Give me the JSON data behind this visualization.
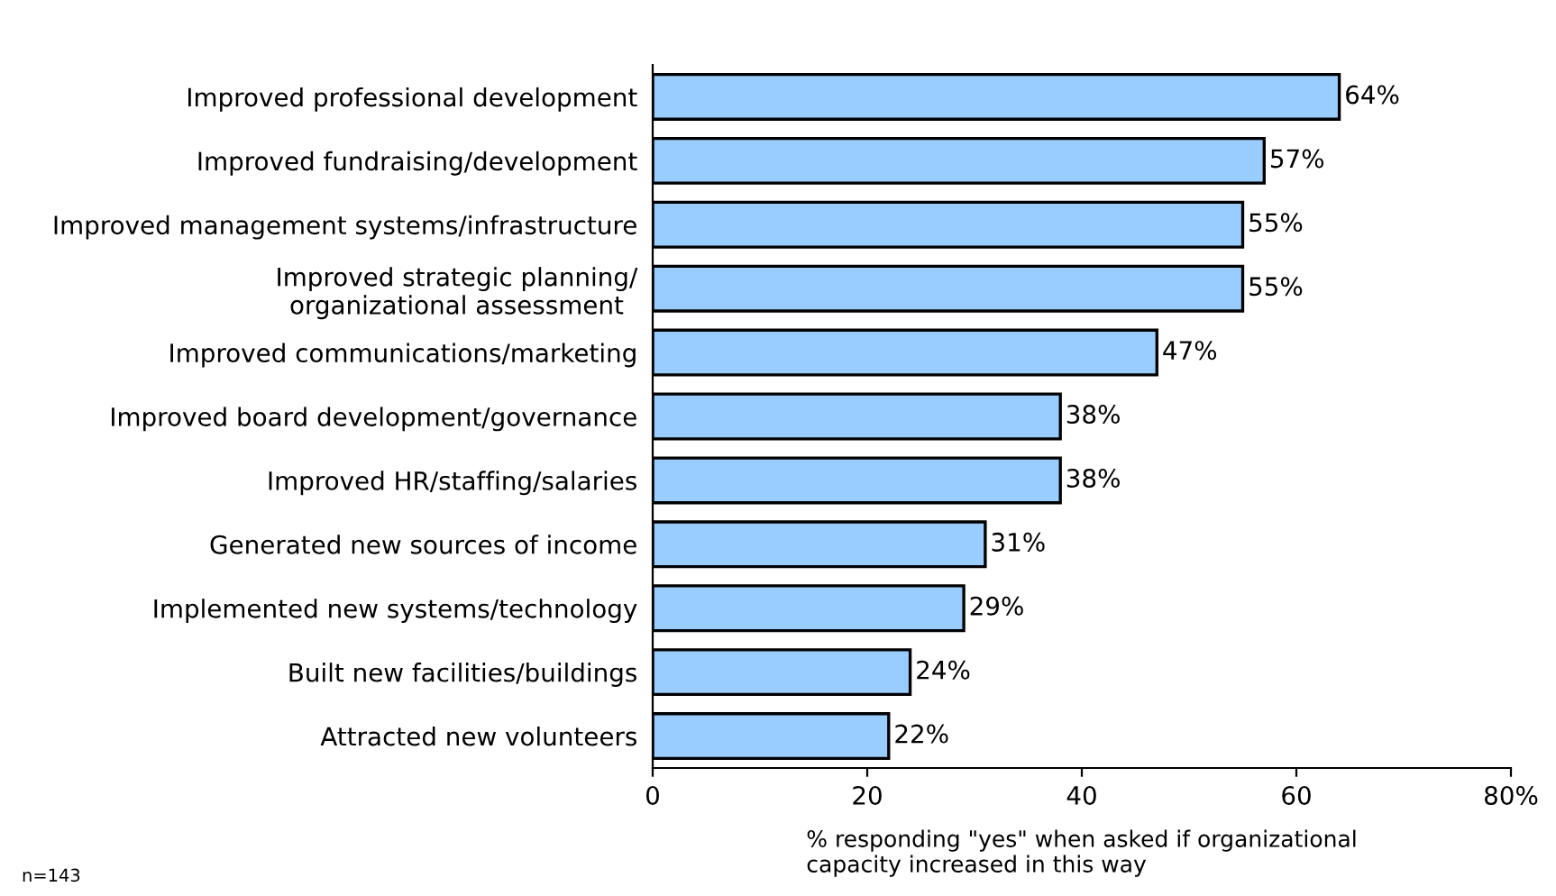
{
  "chart_data": {
    "type": "bar",
    "orientation": "horizontal",
    "categories": [
      "Improved professional development",
      "Improved fundraising/development",
      "Improved management systems/infrastructure",
      "Improved strategic planning/\norganizational assessment",
      "Improved communications/marketing",
      "Improved board development/governance",
      "Improved HR/staffing/salaries",
      "Generated new sources of income",
      "Implemented new systems/technology",
      "Built new facilities/buildings",
      "Attracted new volunteers"
    ],
    "values": [
      64,
      57,
      55,
      55,
      47,
      38,
      38,
      31,
      29,
      24,
      22
    ],
    "value_labels": [
      "64%",
      "57%",
      "55%",
      "55%",
      "47%",
      "38%",
      "38%",
      "31%",
      "29%",
      "24%",
      "22%"
    ],
    "color": "#99ccff",
    "xlim": [
      0,
      80
    ],
    "xticks": [
      0,
      20,
      40,
      60,
      {
        "value": 80,
        "label": "80%"
      }
    ],
    "xlabel": "% responding \"yes\" when asked if organizational\ncapacity increased in this way",
    "annotations": [
      "n=143"
    ],
    "grid": false,
    "legend": false
  }
}
